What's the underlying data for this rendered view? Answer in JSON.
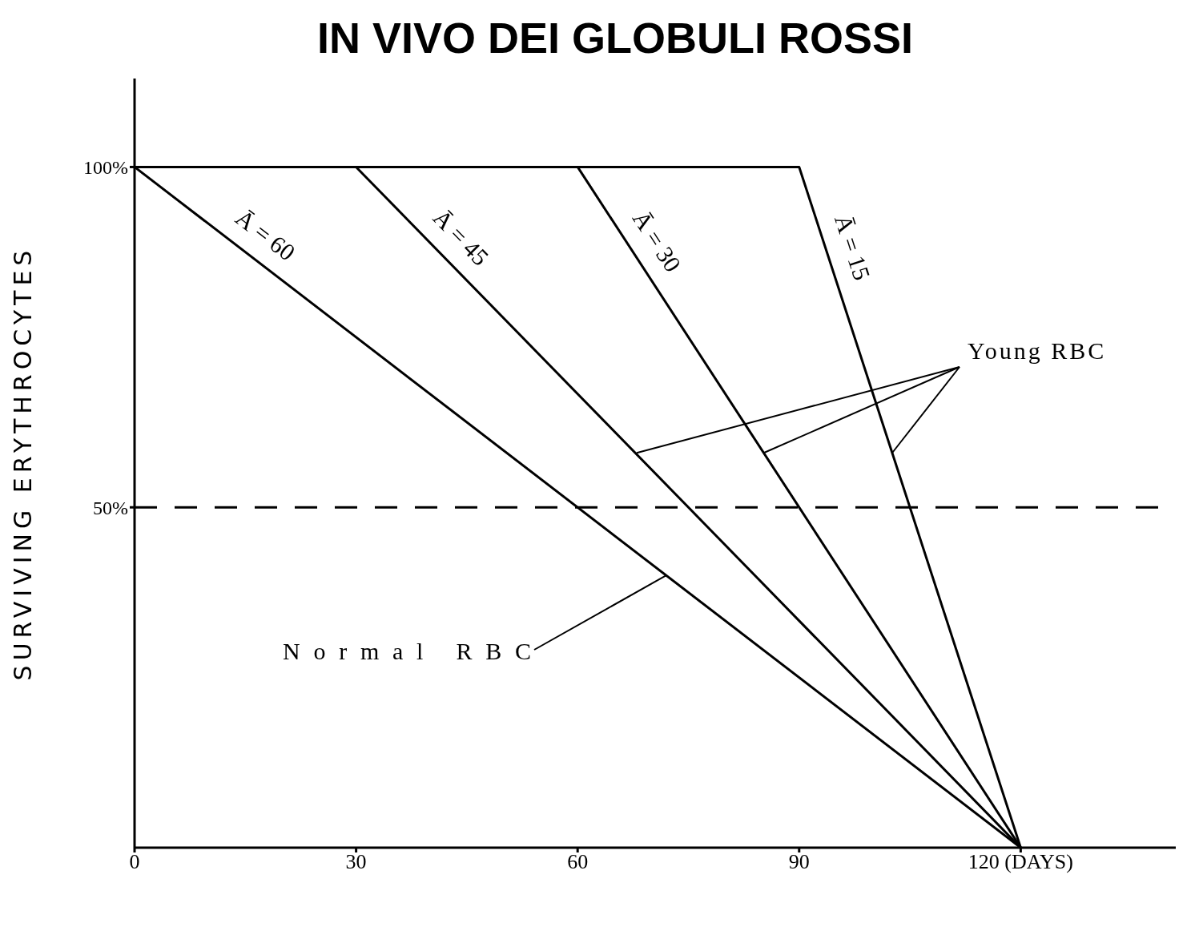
{
  "chart_data": {
    "type": "line",
    "title": "IN VIVO DEI GLOBULI ROSSI",
    "ylabel": "SURVIVING ERYTHROCYTES",
    "xlim": [
      0,
      141
    ],
    "xticks": [
      0,
      30,
      60,
      90,
      {
        "value": 120,
        "label": "120 (DAYS)"
      }
    ],
    "ylim": [
      0,
      113
    ],
    "yticks": [
      {
        "value": 50,
        "label": "50%"
      },
      {
        "value": 100,
        "label": "100%"
      }
    ],
    "grid": false,
    "marker": "none",
    "line_style": "solid",
    "series": [
      {
        "name": "Ā = 60",
        "color": "#000000",
        "x": [
          0,
          120
        ],
        "values": [
          100,
          0
        ]
      },
      {
        "name": "Ā = 45",
        "color": "#000000",
        "x": [
          0,
          30,
          120
        ],
        "values": [
          100,
          100,
          0
        ]
      },
      {
        "name": "Ā = 30",
        "color": "#000000",
        "x": [
          0,
          60,
          120
        ],
        "values": [
          100,
          100,
          0
        ]
      },
      {
        "name": "Ā = 15",
        "color": "#000000",
        "x": [
          0,
          90,
          120
        ],
        "values": [
          100,
          100,
          0
        ]
      }
    ],
    "ref_lines": [
      {
        "axis": "y",
        "value": 50,
        "label": null,
        "color": "#000000",
        "line_style": "dashed"
      }
    ],
    "annotations": [
      {
        "text": "Normal RBC",
        "x": 72,
        "y": 40
      },
      {
        "text": "Young RBC",
        "x": 68,
        "y": 58
      }
    ]
  }
}
